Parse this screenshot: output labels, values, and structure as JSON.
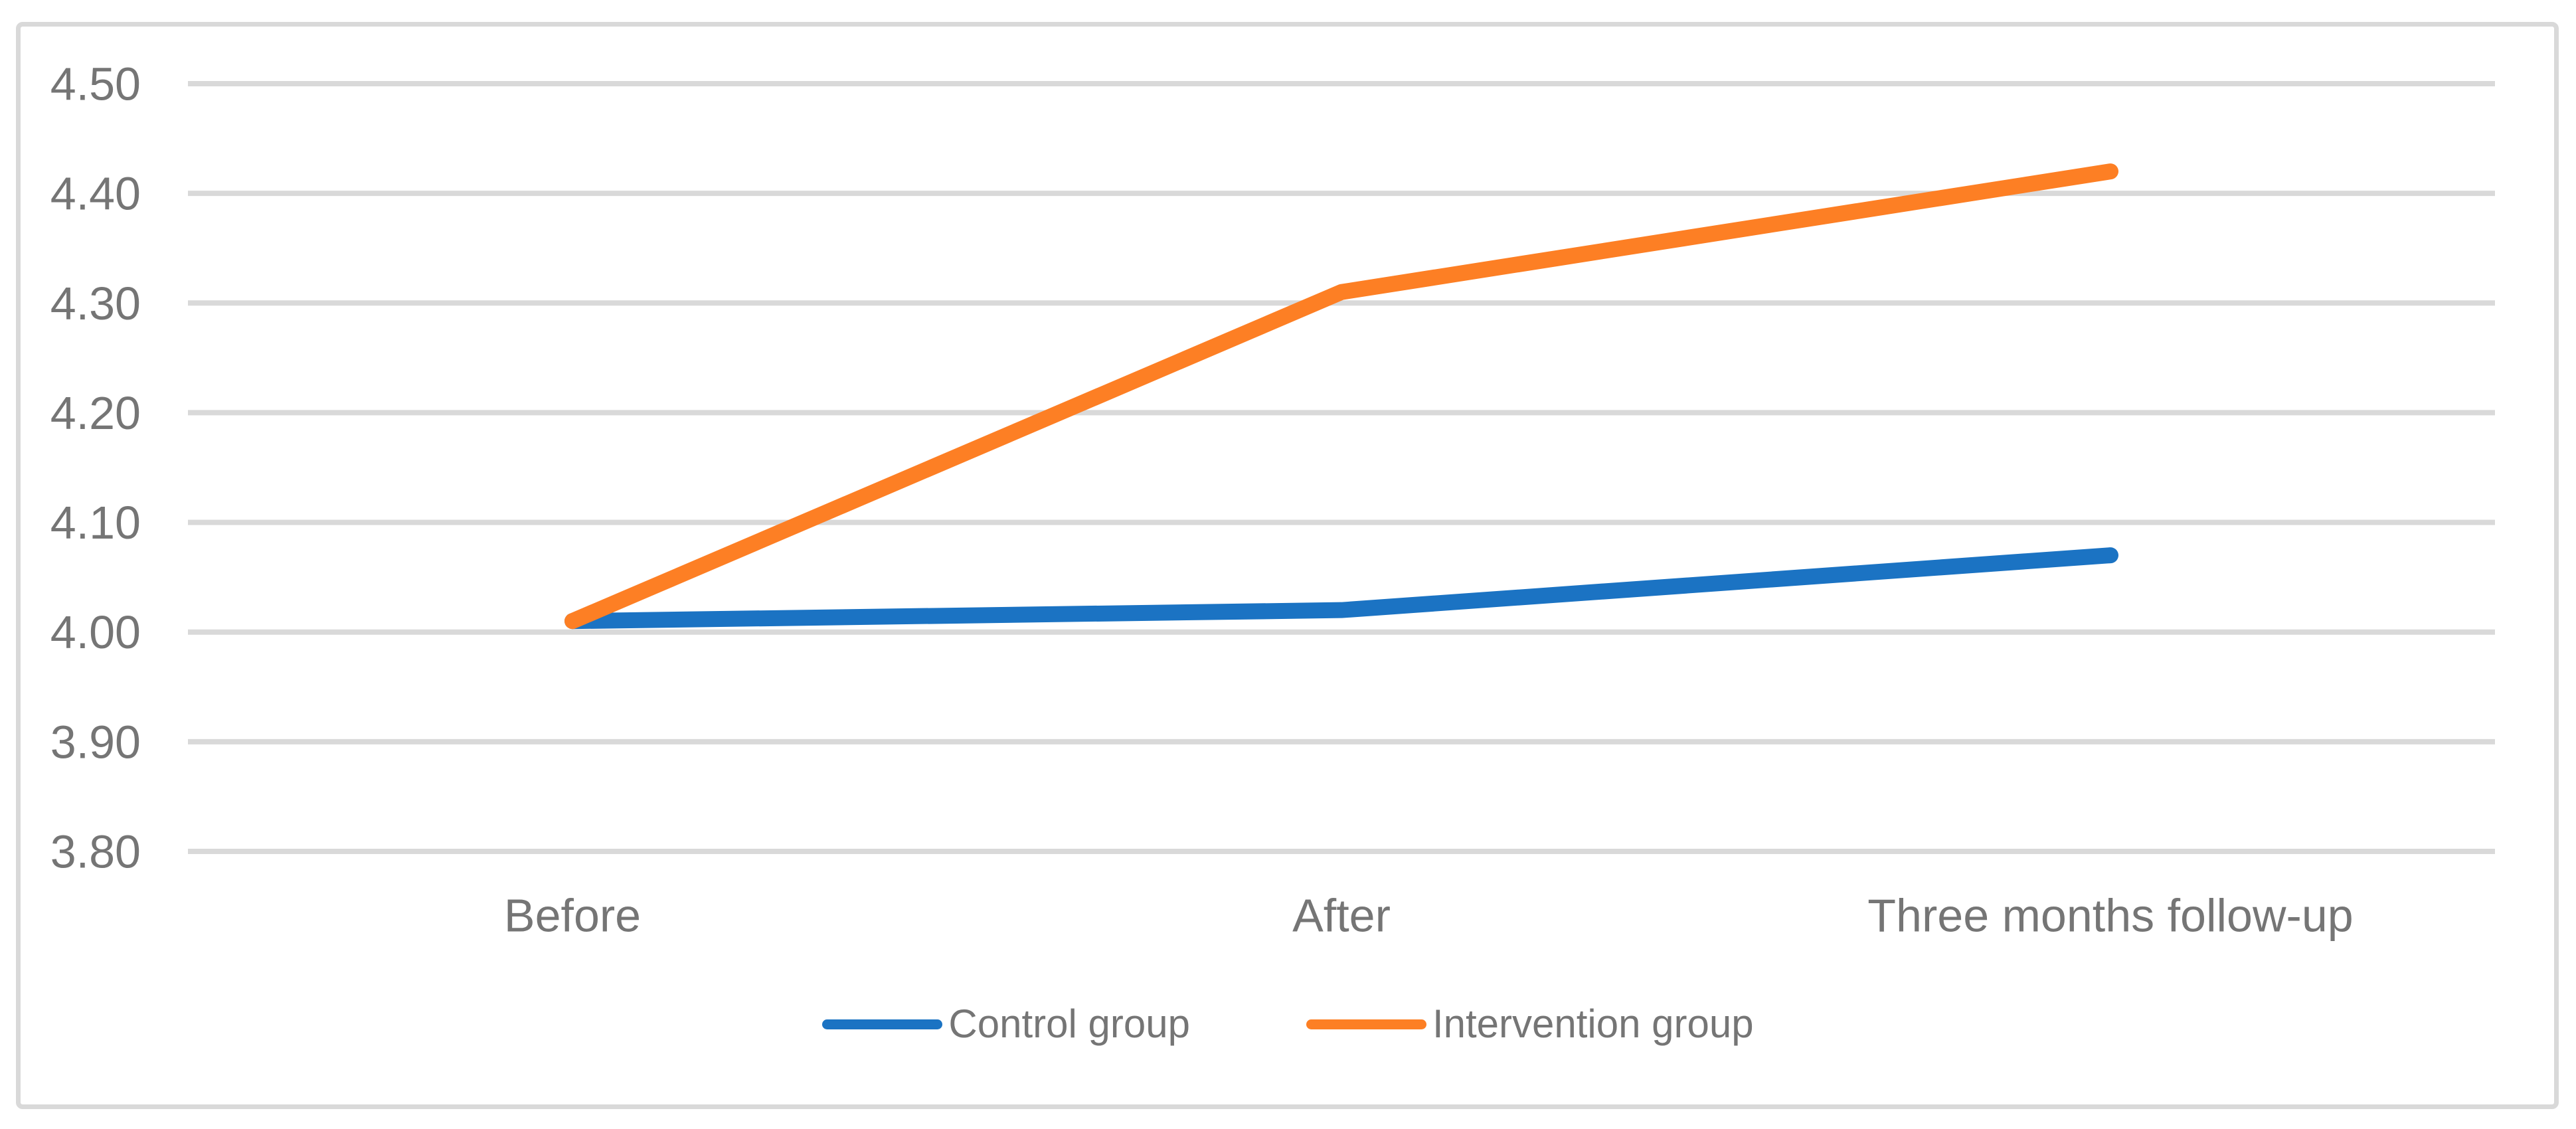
{
  "chart_data": {
    "type": "line",
    "title": "",
    "xlabel": "",
    "ylabel": "",
    "categories": [
      "Before",
      "After",
      "Three months follow-up"
    ],
    "series": [
      {
        "name": "Control group",
        "color": "#1B73C3",
        "values": [
          4.01,
          4.02,
          4.07
        ]
      },
      {
        "name": "Intervention group",
        "color": "#FD7F24",
        "values": [
          4.01,
          4.31,
          4.42
        ]
      }
    ],
    "ylim": [
      3.8,
      4.5
    ],
    "ytick_step": 0.1,
    "ytick_labels": [
      "4.50",
      "4.40",
      "4.30",
      "4.20",
      "4.10",
      "4.00",
      "3.90",
      "3.80"
    ],
    "grid": true,
    "legend_position": "bottom-center"
  },
  "colors": {
    "gridline": "#D9D9D9",
    "frame_border": "#D9D9D9",
    "axis_text": "#757575",
    "background": "#FFFFFF"
  }
}
